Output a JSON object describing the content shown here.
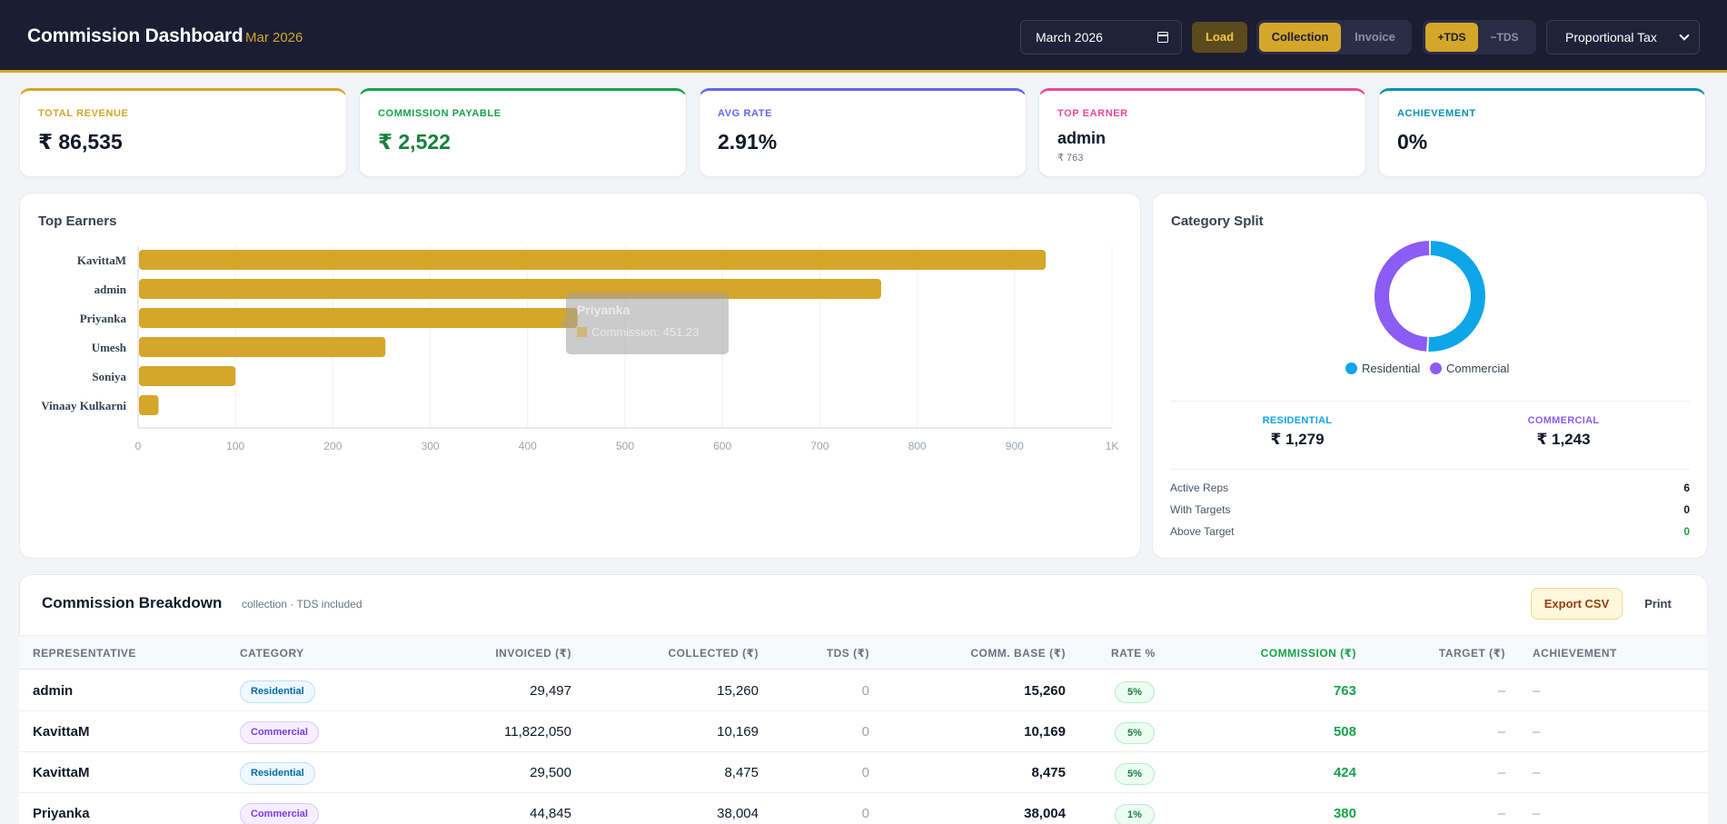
{
  "header": {
    "title": "Commission Dashboard",
    "period": "Mar 2026",
    "month_value": "March  2026",
    "load_label": "Load",
    "basis_options": [
      "Collection",
      "Invoice"
    ],
    "basis_active": "Collection",
    "tds_options": [
      "+TDS",
      "−TDS"
    ],
    "tds_active": "+TDS",
    "tax_mode": "Proportional Tax"
  },
  "kpis": [
    {
      "label": "TOTAL REVENUE",
      "value": "₹ 86,535",
      "color": "#d4a62a",
      "value_color": "#111827"
    },
    {
      "label": "COMMISSION PAYABLE",
      "value": "₹ 2,522",
      "color": "#16a34a",
      "value_color": "#15803d"
    },
    {
      "label": "AVG RATE",
      "value": "2.91%",
      "color": "#6366f1",
      "value_color": "#111827"
    },
    {
      "label": "TOP EARNER",
      "value": "admin",
      "sub": "₹ 763",
      "color": "#ec4899",
      "value_color": "#111827"
    },
    {
      "label": "ACHIEVEMENT",
      "value": "0%",
      "color": "#0891b2",
      "value_color": "#111827"
    }
  ],
  "top_earners": {
    "title": "Top Earners",
    "tooltip": {
      "title": "Priyanka",
      "text": "Commission: 451.23"
    }
  },
  "chart_data": {
    "type": "bar",
    "orientation": "horizontal",
    "title": "Top Earners",
    "categories": [
      "KavittaM",
      "admin",
      "Priyanka",
      "Umesh",
      "Soniya",
      "Vinaay Kulkarni"
    ],
    "series": [
      {
        "values": [
          932,
          763,
          451.23,
          254,
          100,
          21
        ]
      }
    ],
    "xlim": [
      0,
      1000
    ],
    "xticks": [
      "0",
      "100",
      "200",
      "300",
      "400",
      "500",
      "600",
      "700",
      "800",
      "900",
      "1K"
    ],
    "bar_color": "#d4a62a",
    "grid": true
  },
  "category_split": {
    "title": "Category Split",
    "donut": [
      {
        "name": "Residential",
        "value": 1279,
        "color": "#0ea5e9"
      },
      {
        "name": "Commercial",
        "value": 1243,
        "color": "#8b5cf6"
      }
    ],
    "residential_label": "RESIDENTIAL",
    "residential_value": "₹ 1,279",
    "commercial_label": "COMMERCIAL",
    "commercial_value": "₹ 1,243",
    "stats": [
      {
        "label": "Active Reps",
        "value": "6"
      },
      {
        "label": "With Targets",
        "value": "0"
      },
      {
        "label": "Above Target",
        "value": "0"
      }
    ]
  },
  "table": {
    "title": "Commission Breakdown",
    "subtitle": "collection · TDS included",
    "export_label": "Export CSV",
    "print_label": "Print",
    "columns": [
      "REPRESENTATIVE",
      "CATEGORY",
      "INVOICED (₹)",
      "COLLECTED (₹)",
      "TDS (₹)",
      "COMM. BASE (₹)",
      "RATE %",
      "COMMISSION (₹)",
      "TARGET (₹)",
      "ACHIEVEMENT"
    ],
    "rows": [
      {
        "rep": "admin",
        "category": "Residential",
        "invoiced": "29,497",
        "collected": "15,260",
        "tds": "0",
        "base": "15,260",
        "rate": "5%",
        "commission": "763",
        "target": "–",
        "achievement": "–"
      },
      {
        "rep": "KavittaM",
        "category": "Commercial",
        "invoiced": "11,822,050",
        "collected": "10,169",
        "tds": "0",
        "base": "10,169",
        "rate": "5%",
        "commission": "508",
        "target": "–",
        "achievement": "–"
      },
      {
        "rep": "KavittaM",
        "category": "Residential",
        "invoiced": "29,500",
        "collected": "8,475",
        "tds": "0",
        "base": "8,475",
        "rate": "5%",
        "commission": "424",
        "target": "–",
        "achievement": "–"
      },
      {
        "rep": "Priyanka",
        "category": "Commercial",
        "invoiced": "44,845",
        "collected": "38,004",
        "tds": "0",
        "base": "38,004",
        "rate": "1%",
        "commission": "380",
        "target": "–",
        "achievement": "–"
      }
    ]
  }
}
